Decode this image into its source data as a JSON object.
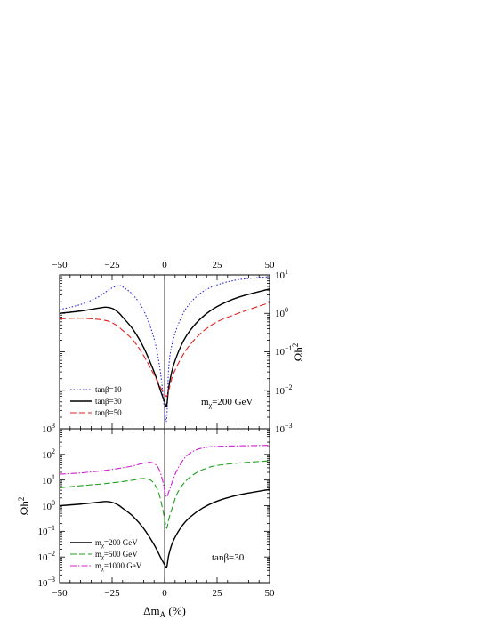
{
  "chart_data": [
    {
      "type": "line",
      "panel": "top",
      "xlim": [
        -50,
        50
      ],
      "ylim": [
        0.001,
        10
      ],
      "yscale": "log",
      "x_ticks": [
        "−50",
        "−25",
        "0",
        "25",
        "50"
      ],
      "y_ticks_right": [
        "10",
        "10",
        "10",
        "10",
        "10"
      ],
      "y_tick_exponents": [
        "1",
        "0",
        "−1",
        "−2",
        "−3"
      ],
      "ylabel": "Ωh",
      "ylabel_sup": "2",
      "annotation": {
        "main": "m",
        "sub": "χ",
        "rest": "=200 GeV"
      },
      "vertical_line_at": 0,
      "legend_position": "bottom-left",
      "series": [
        {
          "name": "tanβ=10",
          "color": "#2b2bd6",
          "dash": "dotted",
          "x": [
            -50,
            -40,
            -32,
            -28,
            -25,
            -22,
            -20,
            -15,
            -10,
            -5,
            -2,
            0,
            1,
            2,
            4,
            8,
            12,
            18,
            25,
            35,
            50
          ],
          "y": [
            1.25,
            1.7,
            2.6,
            3.6,
            4.6,
            5.2,
            4.9,
            3.0,
            1.2,
            0.22,
            0.03,
            0.003,
            0.0018,
            0.04,
            0.2,
            0.8,
            1.8,
            3.6,
            5.5,
            7.5,
            9.0
          ]
        },
        {
          "name": "tanβ=30",
          "color": "#000000",
          "dash": "solid",
          "x": [
            -50,
            -40,
            -32,
            -28,
            -25,
            -22,
            -20,
            -15,
            -10,
            -5,
            -2,
            0,
            1,
            2,
            4,
            8,
            12,
            18,
            25,
            35,
            50
          ],
          "y": [
            1.0,
            1.15,
            1.35,
            1.45,
            1.35,
            1.05,
            0.8,
            0.38,
            0.13,
            0.03,
            0.01,
            0.005,
            0.004,
            0.012,
            0.04,
            0.15,
            0.35,
            0.8,
            1.5,
            2.6,
            4.3
          ]
        },
        {
          "name": "tanβ=50",
          "color": "#e02020",
          "dash": "dashed",
          "x": [
            -50,
            -40,
            -32,
            -28,
            -25,
            -22,
            -20,
            -15,
            -10,
            -5,
            -2,
            0,
            1,
            2,
            4,
            8,
            12,
            18,
            25,
            35,
            50
          ],
          "y": [
            0.72,
            0.75,
            0.7,
            0.65,
            0.57,
            0.45,
            0.36,
            0.2,
            0.08,
            0.025,
            0.012,
            0.008,
            0.007,
            0.01,
            0.025,
            0.07,
            0.15,
            0.33,
            0.6,
            1.0,
            1.9
          ]
        }
      ]
    },
    {
      "type": "line",
      "panel": "bottom",
      "xlim": [
        -50,
        50
      ],
      "ylim": [
        0.001,
        1000
      ],
      "yscale": "log",
      "x_ticks": [
        "−50",
        "−25",
        "0",
        "25",
        "50"
      ],
      "y_ticks_left": [
        "10",
        "10",
        "10",
        "10",
        "10",
        "10",
        "10"
      ],
      "y_tick_exponents": [
        "3",
        "2",
        "1",
        "0",
        "−1",
        "−2",
        "−3"
      ],
      "xlabel": "Δm",
      "xlabel_sub": "A",
      "xlabel_rest": " (%)",
      "ylabel": "Ωh",
      "ylabel_sup": "2",
      "annotation": "tanβ=30",
      "vertical_line_at": 0,
      "legend_position": "bottom-left",
      "series": [
        {
          "name_main": "m",
          "name_sub": "χ",
          "name_rest": "=200 GeV",
          "color": "#000000",
          "dash": "solid",
          "x": [
            -50,
            -40,
            -32,
            -28,
            -25,
            -22,
            -20,
            -15,
            -10,
            -5,
            -2,
            0,
            1,
            2,
            4,
            8,
            12,
            18,
            25,
            35,
            50
          ],
          "y": [
            1.0,
            1.15,
            1.35,
            1.45,
            1.35,
            1.05,
            0.8,
            0.38,
            0.13,
            0.03,
            0.01,
            0.005,
            0.004,
            0.012,
            0.04,
            0.15,
            0.35,
            0.8,
            1.5,
            2.6,
            4.3
          ]
        },
        {
          "name_main": "m",
          "name_sub": "χ",
          "name_rest": "=500 GeV",
          "color": "#1fa01f",
          "dash": "dashed",
          "x": [
            -50,
            -40,
            -30,
            -25,
            -20,
            -15,
            -10,
            -6,
            -3,
            -1,
            0,
            1,
            2,
            4,
            6,
            10,
            15,
            20,
            25,
            35,
            50
          ],
          "y": [
            5.0,
            6.0,
            7.0,
            7.8,
            8.7,
            10.0,
            11.5,
            9.0,
            3.5,
            0.8,
            0.3,
            0.13,
            0.3,
            1.0,
            3.0,
            9.0,
            19.0,
            29.0,
            37.0,
            46.0,
            56.0
          ]
        },
        {
          "name_main": "m",
          "name_sub": "χ",
          "name_rest": "=1000 GeV",
          "color": "#d020d0",
          "dash": "dashdot",
          "x": [
            -50,
            -40,
            -30,
            -25,
            -20,
            -15,
            -10,
            -6,
            -3,
            -1,
            0,
            1,
            2,
            4,
            6,
            10,
            15,
            20,
            25,
            35,
            50
          ],
          "y": [
            17.0,
            19.0,
            23.0,
            26.0,
            30.0,
            36.0,
            45.0,
            48.0,
            30.0,
            10.0,
            4.0,
            2.2,
            3.5,
            10.0,
            25.0,
            80.0,
            150.0,
            190.0,
            205.0,
            215.0,
            225.0
          ]
        }
      ]
    }
  ]
}
